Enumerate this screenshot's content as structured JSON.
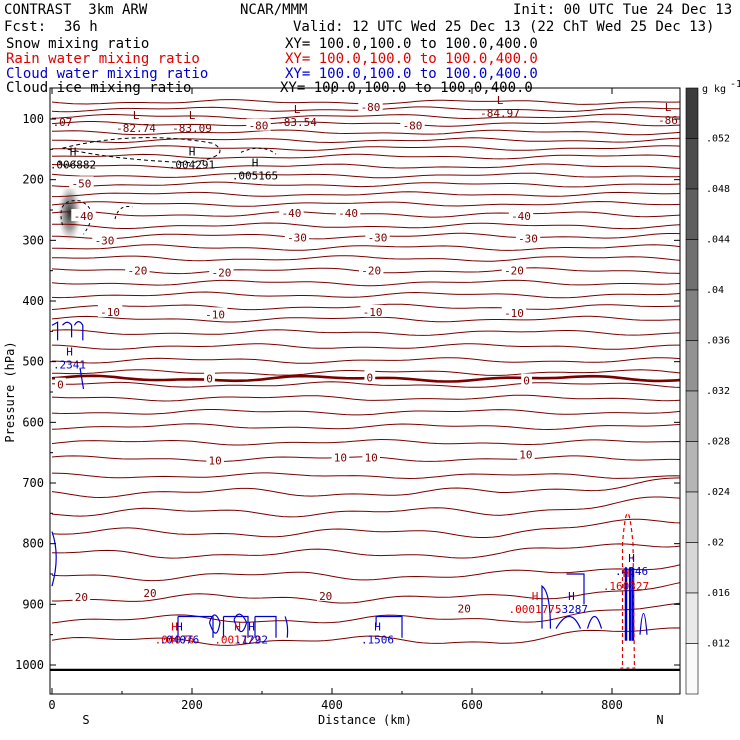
{
  "header": {
    "title_left": "CONTRAST  3km ARW",
    "title_center": "NCAR/MMM",
    "init": "Init: 00 UTC Tue 24 Dec 13",
    "fcst_label": "Fcst:",
    "fcst_value": "36 h",
    "valid": "Valid: 12 UTC Wed 25 Dec 13 (22 ChT Wed 25 Dec 13)"
  },
  "legend": [
    {
      "name": "Snow mixing ratio",
      "xy": "XY= 100.0,100.0 to 100.0,400.0",
      "color": "#000000"
    },
    {
      "name": "Rain water mixing ratio",
      "xy": "XY= 100.0,100.0 to 100.0,400.0",
      "color": "#e00000"
    },
    {
      "name": "Cloud water mixing ratio",
      "xy": "XY= 100.0,100.0 to 100.0,400.0",
      "color": "#0000cc"
    },
    {
      "name": "Cloud ice mixing ratio",
      "xy": "XY= 100.0,100.0 to 100.0,400.0",
      "color": "#000000"
    }
  ],
  "colors": {
    "temperature": "#7a0000",
    "rain": "#e00000",
    "cloud_water": "#0000cc",
    "snow": "#000000"
  },
  "chart_data": {
    "type": "cross-section",
    "xlabel": "Distance (km)",
    "ylabel": "Pressure (hPa)",
    "xlim": [
      0,
      900
    ],
    "ylim": [
      1040,
      50
    ],
    "x_ticks": [
      "0",
      "200",
      "400",
      "600",
      "800"
    ],
    "x_tick_values": [
      0,
      200,
      400,
      600,
      800
    ],
    "y_ticks": [
      "100",
      "200",
      "300",
      "400",
      "500",
      "600",
      "700",
      "800",
      "900",
      "1000"
    ],
    "y_tick_values": [
      100,
      200,
      300,
      400,
      500,
      600,
      700,
      800,
      900,
      1000
    ],
    "direction_left": "S",
    "direction_right": "N",
    "surface_pressure": 1008,
    "colorbar": {
      "unit": "g kg",
      "unit_exp": "-1",
      "labels": [
        ".052",
        ".048",
        ".044",
        ".04",
        ".036",
        ".032",
        ".028",
        ".024",
        ".02",
        ".016",
        ".012"
      ],
      "values": [
        0.052,
        0.048,
        0.044,
        0.04,
        0.036,
        0.032,
        0.028,
        0.024,
        0.02,
        0.016,
        0.012
      ]
    },
    "temperature_labels": [
      {
        "text": "-80",
        "x": 455,
        "p": 80
      },
      {
        "text": "-80",
        "x": 295,
        "p": 111
      },
      {
        "text": "-80",
        "x": 515,
        "p": 111
      },
      {
        "text": "-50",
        "x": 42,
        "p": 206
      },
      {
        "text": "-40",
        "x": 45,
        "p": 260
      },
      {
        "text": "-40",
        "x": 342,
        "p": 255
      },
      {
        "text": "-40",
        "x": 423,
        "p": 255
      },
      {
        "text": "-40",
        "x": 670,
        "p": 260
      },
      {
        "text": "-30",
        "x": 75,
        "p": 300
      },
      {
        "text": "-30",
        "x": 350,
        "p": 295
      },
      {
        "text": "-30",
        "x": 465,
        "p": 295
      },
      {
        "text": "-30",
        "x": 680,
        "p": 297
      },
      {
        "text": "-20",
        "x": 122,
        "p": 350
      },
      {
        "text": "-20",
        "x": 242,
        "p": 353
      },
      {
        "text": "-20",
        "x": 456,
        "p": 350
      },
      {
        "text": "-20",
        "x": 660,
        "p": 350
      },
      {
        "text": "-10",
        "x": 83,
        "p": 418
      },
      {
        "text": "-10",
        "x": 233,
        "p": 422
      },
      {
        "text": "-10",
        "x": 458,
        "p": 418
      },
      {
        "text": "-10",
        "x": 660,
        "p": 420
      },
      {
        "text": "0",
        "x": 12,
        "p": 538
      },
      {
        "text": "0",
        "x": 225,
        "p": 528
      },
      {
        "text": "0",
        "x": 454,
        "p": 526
      },
      {
        "text": "0",
        "x": 678,
        "p": 531
      },
      {
        "text": "10",
        "x": 233,
        "p": 663
      },
      {
        "text": "10",
        "x": 412,
        "p": 658
      },
      {
        "text": "10",
        "x": 456,
        "p": 658
      },
      {
        "text": "10",
        "x": 677,
        "p": 653
      },
      {
        "text": "20",
        "x": 42,
        "p": 888
      },
      {
        "text": "20",
        "x": 140,
        "p": 881
      },
      {
        "text": "20",
        "x": 391,
        "p": 886
      },
      {
        "text": "20",
        "x": 589,
        "p": 907
      }
    ],
    "temperature_isolines_p": [
      72,
      84,
      96,
      108,
      122,
      135,
      148,
      162,
      178,
      193,
      208,
      224,
      240,
      257,
      276,
      293,
      312,
      330,
      350,
      370,
      390,
      410,
      430,
      452,
      475,
      498,
      518,
      538,
      560,
      583,
      607,
      633,
      660,
      688,
      716,
      748,
      782,
      817,
      853,
      890,
      925,
      960
    ],
    "zero_isotherm_p": 528,
    "extrema": [
      {
        "type": "L",
        "value": "-82.74",
        "x": 120,
        "p": 105,
        "color": "#7a0000"
      },
      {
        "type": "L",
        "value": "-83.09",
        "x": 200,
        "p": 105,
        "color": "#7a0000"
      },
      {
        "type": "L",
        "value": "-83.54",
        "x": 350,
        "p": 95,
        "color": "#7a0000"
      },
      {
        "type": "L",
        "value": "-84.97",
        "x": 640,
        "p": 80,
        "color": "#7a0000"
      },
      {
        "type": "L",
        "value": "-86",
        "x": 880,
        "p": 92,
        "color": "#7a0000"
      },
      {
        "type": "",
        "value": ".07",
        "x": 15,
        "p": 95,
        "color": "#7a0000"
      },
      {
        "type": "H",
        "value": ".006882",
        "x": 30,
        "p": 165,
        "color": "#000000"
      },
      {
        "type": "H",
        "value": ".004291",
        "x": 200,
        "p": 165,
        "color": "#000000"
      },
      {
        "type": "H",
        "value": ".005165",
        "x": 290,
        "p": 183,
        "color": "#000000"
      },
      {
        "type": "H",
        "value": ".2341",
        "x": 25,
        "p": 495,
        "color": "#0000cc"
      },
      {
        "type": "H",
        "value": ".04076",
        "x": 175,
        "p": 948,
        "color": "#e00000"
      },
      {
        "type": "H",
        "value": ".04076",
        "x": 182,
        "p": 948,
        "color": "#0000cc"
      },
      {
        "type": "H",
        "value": ".001772",
        "x": 265,
        "p": 948,
        "color": "#e00000"
      },
      {
        "type": "H",
        "value": ".1292",
        "x": 285,
        "p": 948,
        "color": "#0000cc"
      },
      {
        "type": "H",
        "value": ".1506",
        "x": 465,
        "p": 948,
        "color": "#0000cc"
      },
      {
        "type": "H",
        "value": ".0001775",
        "x": 690,
        "p": 898,
        "color": "#e00000"
      },
      {
        "type": "H",
        "value": ".3287",
        "x": 742,
        "p": 898,
        "color": "#0000cc"
      },
      {
        "type": "H",
        "value": ".4546",
        "x": 828,
        "p": 835,
        "color": "#0000cc"
      },
      {
        "type": "H",
        "value": ".160327",
        "x": 820,
        "p": 860,
        "color": "#e00000"
      }
    ]
  }
}
